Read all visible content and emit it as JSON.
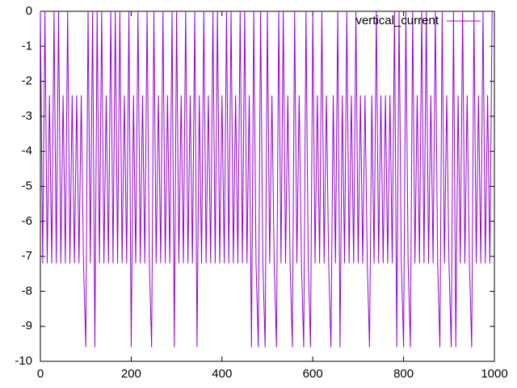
{
  "chart_data": {
    "type": "line",
    "x": [
      0,
      5,
      10,
      15,
      20,
      25,
      30,
      35,
      40,
      45,
      50,
      55,
      60,
      65,
      70,
      75,
      80,
      85,
      90,
      95,
      100,
      105,
      110,
      115,
      120,
      125,
      130,
      135,
      140,
      145,
      150,
      155,
      160,
      165,
      170,
      175,
      180,
      185,
      190,
      195,
      200,
      205,
      210,
      215,
      220,
      225,
      230,
      235,
      240,
      245,
      250,
      255,
      260,
      265,
      270,
      275,
      280,
      285,
      290,
      295,
      300,
      305,
      310,
      315,
      320,
      325,
      330,
      335,
      340,
      345,
      350,
      355,
      360,
      365,
      370,
      375,
      380,
      385,
      390,
      395,
      400,
      405,
      410,
      415,
      420,
      425,
      430,
      435,
      440,
      445,
      450,
      455,
      460,
      465,
      470,
      475,
      480,
      485,
      490,
      495,
      500,
      505,
      510,
      515,
      520,
      525,
      530,
      535,
      540,
      545,
      550,
      555,
      560,
      565,
      570,
      575,
      580,
      585,
      590,
      595,
      600,
      605,
      610,
      615,
      620,
      625,
      630,
      635,
      640,
      645,
      650,
      655,
      660,
      665,
      670,
      675,
      680,
      685,
      690,
      695,
      700,
      705,
      710,
      715,
      720,
      725,
      730,
      735,
      740,
      745,
      750,
      755,
      760,
      765,
      770,
      775,
      780,
      785,
      790,
      795,
      800,
      805,
      810,
      815,
      820,
      825,
      830,
      835,
      840,
      845,
      850,
      855,
      860,
      865,
      870,
      875,
      880,
      885,
      890,
      895,
      900,
      905,
      910,
      915,
      920,
      925,
      930,
      935,
      940,
      945,
      950,
      955,
      960,
      965,
      970,
      975,
      980,
      985,
      990,
      995
    ],
    "series": [
      {
        "name": "vertical_current",
        "color": "#9400d3",
        "values": [
          0,
          -7.2,
          0,
          -7.2,
          -2.4,
          -7.2,
          0,
          -7.2,
          0,
          -7.2,
          -2.4,
          -7.2,
          0,
          -7.2,
          -2.4,
          -7.2,
          -2.4,
          -7.2,
          -2.4,
          -7.2,
          -9.6,
          0,
          -7.2,
          0,
          -9.6,
          0,
          -7.2,
          0,
          -7.2,
          -2.4,
          -7.2,
          0,
          -7.2,
          0,
          -7.2,
          0,
          -7.2,
          -2.4,
          -7.2,
          0,
          -9.6,
          -2.4,
          -7.2,
          0,
          -7.2,
          -2.4,
          -7.2,
          0,
          -7.2,
          -9.6,
          0,
          -7.2,
          -2.4,
          -7.2,
          0,
          -7.2,
          -2.4,
          -7.2,
          0,
          -9.6,
          0,
          -7.2,
          -2.4,
          -7.2,
          0,
          -7.2,
          -2.4,
          -7.2,
          0,
          -9.6,
          -2.4,
          -7.2,
          0,
          -7.2,
          -2.4,
          -7.2,
          0,
          -7.2,
          0,
          -7.2,
          -2.4,
          -7.2,
          0,
          -7.2,
          0,
          -7.2,
          -2.4,
          -7.2,
          0,
          -7.2,
          0,
          -7.2,
          -2.4,
          -9.6,
          0,
          -7.2,
          -9.6,
          0,
          -7.2,
          -9.6,
          0,
          -7.2,
          -2.4,
          -7.2,
          -9.6,
          0,
          -7.2,
          0,
          -7.2,
          -2.4,
          -7.2,
          -9.6,
          0,
          -7.2,
          -2.4,
          -7.2,
          -9.6,
          0,
          -7.2,
          -9.6,
          0,
          -7.2,
          -2.4,
          -7.2,
          0,
          -7.2,
          -2.4,
          -7.2,
          -9.6,
          -2.4,
          -7.2,
          0,
          -9.6,
          -2.4,
          -7.2,
          0,
          -7.2,
          -2.4,
          -7.2,
          0,
          -7.2,
          -2.4,
          -7.2,
          -2.4,
          -7.2,
          -9.6,
          -2.4,
          -7.2,
          0,
          -7.2,
          -2.4,
          -7.2,
          -2.4,
          -7.2,
          -2.4,
          -7.2,
          0,
          -9.6,
          0,
          -7.2,
          -9.6,
          0,
          -7.2,
          -9.6,
          0,
          -7.2,
          -2.4,
          -7.2,
          0,
          -7.2,
          0,
          -7.2,
          -2.4,
          -7.2,
          0,
          -7.2,
          -9.6,
          0,
          -7.2,
          -2.4,
          -7.2,
          -9.6,
          0,
          -9.6,
          -2.4,
          -7.2,
          0,
          -7.2,
          -2.4,
          -7.2,
          -9.6,
          0,
          -7.2,
          -2.4,
          -7.2,
          0,
          -7.2,
          -2.4,
          -7.2,
          0
        ]
      }
    ],
    "xlim": [
      0,
      1000
    ],
    "xticks": [
      0,
      200,
      400,
      600,
      800,
      1000
    ],
    "ylim": [
      -10,
      0
    ],
    "yticks": [
      0,
      -1,
      -2,
      -3,
      -4,
      -5,
      -6,
      -7,
      -8,
      -9,
      -10
    ],
    "legend": "top-right"
  }
}
